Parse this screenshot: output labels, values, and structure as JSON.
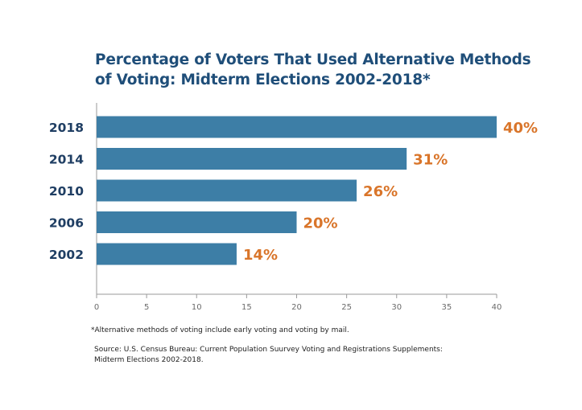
{
  "title_lines": [
    "Percentage of Voters That Used Alternative Methods",
    "of Voting: Midterm Elections 2002-2018*"
  ],
  "footnote": "*Alternative methods of voting include early voting and voting by mail.",
  "source_lines": [
    "Source: U.S. Census Bureau: Current Population Suurvey Voting and Registrations Supplements:",
    "Midterm Elections 2002-2018."
  ],
  "colors": {
    "bar": "#3d7ea6",
    "label": "#d9752a",
    "category": "#1f3e63",
    "title": "#1f4e79"
  },
  "chart_data": {
    "type": "bar",
    "orientation": "horizontal",
    "categories": [
      "2018",
      "2014",
      "2010",
      "2006",
      "2002"
    ],
    "values": [
      40,
      31,
      26,
      20,
      14
    ],
    "data_labels": [
      "40%",
      "31%",
      "26%",
      "20%",
      "14%"
    ],
    "xticks": [
      "0",
      "5",
      "10",
      "15",
      "20",
      "25",
      "30",
      "35",
      "40"
    ],
    "xlim": [
      0,
      40
    ],
    "grid": false,
    "legend": "none"
  }
}
